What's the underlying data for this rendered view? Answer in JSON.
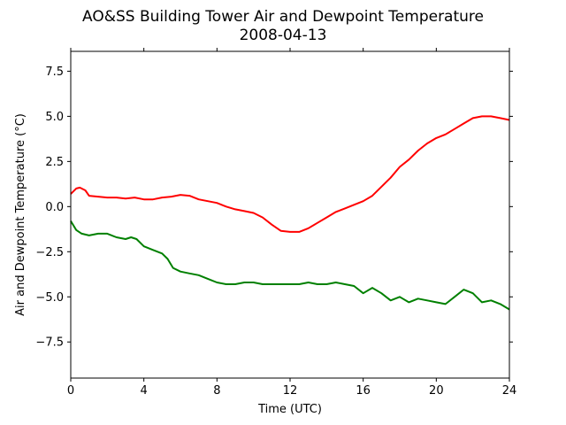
{
  "chart_data": {
    "type": "line",
    "title": "AO&SS Building Tower Air and Dewpoint Temperature",
    "subtitle": "2008-04-13",
    "xlabel": "Time (UTC)",
    "ylabel": "Air and Dewpoint Temperature (°C)",
    "xlim": [
      0,
      24
    ],
    "ylim": [
      -9.5,
      8.6
    ],
    "xticks": [
      0,
      4,
      8,
      12,
      16,
      20,
      24
    ],
    "xtick_labels": [
      "0",
      "4",
      "8",
      "12",
      "16",
      "20",
      "24"
    ],
    "yticks": [
      -7.5,
      -5.0,
      -2.5,
      0.0,
      2.5,
      5.0,
      7.5
    ],
    "ytick_labels": [
      "−7.5",
      "−5.0",
      "−2.5",
      "0.0",
      "2.5",
      "5.0",
      "7.5"
    ],
    "grid": false,
    "colors": {
      "air": "#ff0000",
      "dewpoint": "#008000"
    },
    "series": [
      {
        "x": [
          0,
          0.3,
          0.5,
          0.8,
          1.0,
          1.5,
          2,
          2.5,
          3,
          3.5,
          4,
          4.5,
          5,
          5.5,
          6,
          6.5,
          7,
          7.5,
          8,
          8.5,
          9,
          9.5,
          10,
          10.5,
          11,
          11.5,
          12,
          12.5,
          13,
          13.5,
          14,
          14.5,
          15,
          15.5,
          16,
          16.5,
          17,
          17.5,
          18,
          18.5,
          19,
          19.5,
          20,
          20.5,
          21,
          21.5,
          22,
          22.5,
          23,
          23.5,
          24
        ],
        "values": [
          0.7,
          1.0,
          1.05,
          0.9,
          0.6,
          0.55,
          0.5,
          0.5,
          0.45,
          0.5,
          0.4,
          0.4,
          0.5,
          0.55,
          0.65,
          0.6,
          0.4,
          0.3,
          0.2,
          0.0,
          -0.15,
          -0.25,
          -0.35,
          -0.6,
          -1.0,
          -1.35,
          -1.4,
          -1.4,
          -1.2,
          -0.9,
          -0.6,
          -0.3,
          -0.1,
          0.1,
          0.3,
          0.6,
          1.1,
          1.6,
          2.2,
          2.6,
          3.1,
          3.5,
          3.8,
          4.0,
          4.3,
          4.6,
          4.9,
          5.0,
          5.0,
          4.9,
          4.8
        ]
      },
      {
        "x": [
          0,
          0.3,
          0.6,
          1.0,
          1.5,
          2.0,
          2.5,
          3.0,
          3.3,
          3.6,
          4.0,
          4.5,
          5.0,
          5.3,
          5.6,
          6.0,
          6.5,
          7.0,
          7.5,
          8.0,
          8.5,
          9.0,
          9.5,
          10.0,
          10.5,
          11.0,
          11.5,
          12.0,
          12.5,
          13.0,
          13.5,
          14.0,
          14.5,
          15.0,
          15.5,
          16.0,
          16.5,
          17.0,
          17.5,
          18.0,
          18.5,
          19.0,
          19.5,
          20.0,
          20.5,
          21.0,
          21.5,
          22.0,
          22.5,
          23.0,
          23.5,
          24.0
        ],
        "values": [
          -0.8,
          -1.3,
          -1.5,
          -1.6,
          -1.5,
          -1.5,
          -1.7,
          -1.8,
          -1.7,
          -1.8,
          -2.2,
          -2.4,
          -2.6,
          -2.9,
          -3.4,
          -3.6,
          -3.7,
          -3.8,
          -4.0,
          -4.2,
          -4.3,
          -4.3,
          -4.2,
          -4.2,
          -4.3,
          -4.3,
          -4.3,
          -4.3,
          -4.3,
          -4.2,
          -4.3,
          -4.3,
          -4.2,
          -4.3,
          -4.4,
          -4.8,
          -4.5,
          -4.8,
          -5.2,
          -5.0,
          -5.3,
          -5.1,
          -5.2,
          -5.3,
          -5.4,
          -5.0,
          -4.6,
          -4.8,
          -5.3,
          -5.2,
          -5.4,
          -5.7
        ]
      }
    ]
  }
}
